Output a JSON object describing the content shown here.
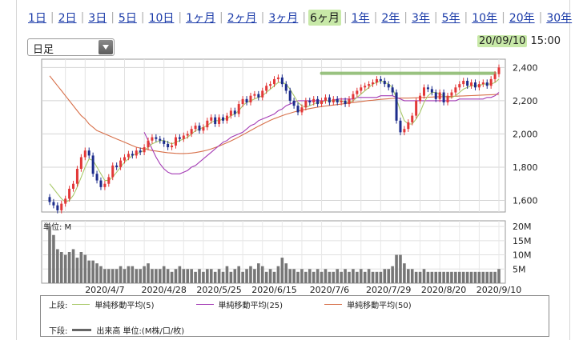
{
  "tabs": [
    "1日",
    "2日",
    "3日",
    "5日",
    "10日",
    "1ヶ月",
    "2ヶ月",
    "3ヶ月",
    "6ヶ月",
    "1年",
    "2年",
    "3年",
    "5年",
    "10年",
    "20年",
    "30年"
  ],
  "active_tab": "6ヶ月",
  "period_select": {
    "value": "日足"
  },
  "timestamp": {
    "date": "20/09/10",
    "time": "15:00"
  },
  "colors": {
    "up": "#e23838",
    "down": "#1d2d8c",
    "ma5": "#a9c96a",
    "ma25": "#a43bb5",
    "ma50": "#d7704a",
    "volume": "#777777",
    "highlight": "#88b86a"
  },
  "chart_data": {
    "type": "candlestick",
    "x_tick_labels": [
      "2020/4/7",
      "2020/4/28",
      "2020/5/25",
      "2020/6/15",
      "2020/7/6",
      "2020/7/29",
      "2020/8/20",
      "2020/9/10"
    ],
    "price_axis": {
      "ticks": [
        1600,
        1800,
        2000,
        2200,
        2400
      ],
      "labels": [
        "1,600",
        "1,800",
        "2,000",
        "2,200",
        "2,400"
      ],
      "range": [
        1530,
        2450
      ]
    },
    "volume_axis": {
      "label": "単位: M",
      "ticks": [
        5,
        10,
        15,
        20
      ],
      "labels": [
        "5M",
        "10M",
        "15M",
        "20M"
      ],
      "range": [
        0,
        22
      ]
    },
    "close": [
      1590,
      1570,
      1540,
      1580,
      1610,
      1670,
      1700,
      1790,
      1860,
      1900,
      1870,
      1760,
      1720,
      1680,
      1700,
      1740,
      1810,
      1800,
      1840,
      1860,
      1880,
      1870,
      1900,
      1890,
      1920,
      1960,
      1980,
      1970,
      1960,
      1940,
      1920,
      1930,
      1980,
      1970,
      1990,
      2000,
      2030,
      2050,
      2020,
      2040,
      2080,
      2100,
      2060,
      2100,
      2080,
      2110,
      2140,
      2120,
      2180,
      2210,
      2190,
      2230,
      2240,
      2220,
      2260,
      2290,
      2300,
      2330,
      2340,
      2300,
      2260,
      2200,
      2170,
      2130,
      2160,
      2200,
      2190,
      2210,
      2180,
      2200,
      2220,
      2190,
      2210,
      2190,
      2200,
      2180,
      2210,
      2240,
      2260,
      2280,
      2290,
      2300,
      2310,
      2330,
      2320,
      2300,
      2280,
      2250,
      2080,
      2010,
      2030,
      2070,
      2110,
      2200,
      2230,
      2280,
      2270,
      2250,
      2210,
      2250,
      2190,
      2230,
      2250,
      2280,
      2300,
      2320,
      2290,
      2310,
      2280,
      2300,
      2310,
      2290,
      2330,
      2360,
      2400
    ],
    "ma5": [
      1700,
      1670,
      1640,
      1610,
      1590,
      1600,
      1630,
      1680,
      1740,
      1800,
      1850,
      1840,
      1800,
      1760,
      1720,
      1720,
      1740,
      1770,
      1800,
      1830,
      1850,
      1870,
      1880,
      1890,
      1900,
      1920,
      1940,
      1950,
      1960,
      1960,
      1950,
      1940,
      1950,
      1960,
      1970,
      1980,
      2000,
      2020,
      2030,
      2040,
      2050,
      2070,
      2080,
      2080,
      2090,
      2090,
      2110,
      2120,
      2140,
      2170,
      2190,
      2200,
      2210,
      2220,
      2230,
      2250,
      2270,
      2290,
      2310,
      2310,
      2300,
      2270,
      2230,
      2190,
      2170,
      2160,
      2170,
      2180,
      2190,
      2190,
      2200,
      2200,
      2200,
      2200,
      2200,
      2190,
      2190,
      2200,
      2220,
      2240,
      2260,
      2280,
      2300,
      2310,
      2320,
      2310,
      2300,
      2280,
      2210,
      2140,
      2080,
      2060,
      2060,
      2090,
      2130,
      2190,
      2230,
      2250,
      2250,
      2240,
      2230,
      2220,
      2220,
      2230,
      2250,
      2270,
      2280,
      2290,
      2290,
      2290,
      2300,
      2300,
      2300,
      2310,
      2330
    ],
    "ma25": [
      null,
      null,
      null,
      null,
      null,
      null,
      null,
      null,
      null,
      null,
      null,
      null,
      null,
      null,
      null,
      null,
      null,
      null,
      null,
      null,
      null,
      null,
      null,
      null,
      2010,
      1960,
      1910,
      1860,
      1820,
      1790,
      1770,
      1760,
      1760,
      1760,
      1770,
      1780,
      1800,
      1810,
      1830,
      1850,
      1870,
      1890,
      1910,
      1930,
      1950,
      1960,
      1980,
      1990,
      2000,
      2010,
      2030,
      2050,
      2060,
      2080,
      2090,
      2100,
      2110,
      2120,
      2140,
      2150,
      2170,
      2180,
      2190,
      2200,
      2200,
      2200,
      2200,
      2200,
      2200,
      2200,
      2200,
      2200,
      2200,
      2210,
      2210,
      2210,
      2210,
      2210,
      2220,
      2220,
      2220,
      2220,
      2220,
      2220,
      2230,
      2230,
      2230,
      2230,
      2220,
      2210,
      2200,
      2200,
      2200,
      2200,
      2200,
      2200,
      2200,
      2200,
      2200,
      2200,
      2200,
      2200,
      2200,
      2200,
      2210,
      2210,
      2210,
      2210,
      2210,
      2210,
      2210,
      2220,
      2220,
      2230,
      2250
    ],
    "ma50": [
      2350,
      2320,
      2290,
      2260,
      2230,
      2200,
      2170,
      2140,
      2110,
      2090,
      2060,
      2040,
      2020,
      2010,
      2000,
      1990,
      1980,
      1970,
      1960,
      1950,
      1940,
      1930,
      1920,
      1915,
      1910,
      1905,
      1900,
      1897,
      1893,
      1890,
      1887,
      1885,
      1883,
      1882,
      1882,
      1883,
      1885,
      1888,
      1892,
      1897,
      1903,
      1910,
      1918,
      1927,
      1937,
      1947,
      1958,
      1970,
      1982,
      1995,
      2008,
      2021,
      2034,
      2047,
      2059,
      2071,
      2082,
      2092,
      2101,
      2110,
      2118,
      2125,
      2132,
      2138,
      2143,
      2148,
      2153,
      2157,
      2161,
      2165,
      2168,
      2171,
      2174,
      2177,
      2180,
      2183,
      2186,
      2189,
      2192,
      2195,
      2198,
      2201,
      2203,
      2206,
      2208,
      2210,
      2212,
      2214,
      2215,
      2216,
      2216,
      2216,
      2217,
      2218,
      2219,
      2220,
      2221,
      2222,
      2223,
      2224,
      2224,
      2225,
      2226,
      2227,
      2228,
      2229,
      2230,
      2231,
      2232,
      2233,
      2234,
      2235,
      2236,
      2237,
      2238
    ],
    "volume": [
      20,
      17,
      12,
      11,
      10,
      11,
      12,
      9,
      11,
      10,
      8,
      8,
      7,
      6,
      5,
      5,
      5,
      5,
      6,
      5,
      6,
      6,
      5,
      5,
      6,
      7,
      5,
      5,
      5,
      6,
      5,
      4,
      5,
      6,
      5,
      5,
      5,
      4,
      5,
      4,
      5,
      5,
      4,
      5,
      4,
      6,
      4,
      5,
      6,
      4,
      5,
      6,
      5,
      7,
      6,
      4,
      5,
      4,
      6,
      9,
      7,
      5,
      5,
      4,
      5,
      4,
      5,
      4,
      5,
      4,
      5,
      4,
      4,
      5,
      4,
      5,
      4,
      5,
      4,
      5,
      4,
      5,
      4,
      4,
      4,
      5,
      5,
      6,
      10,
      10,
      7,
      5,
      5,
      4,
      4,
      5,
      4,
      4,
      4,
      4,
      4,
      4,
      4,
      4,
      4,
      4,
      4,
      4,
      4,
      4,
      4,
      4,
      4,
      4,
      5
    ],
    "legend": {
      "upper_label": "上段:",
      "lower_label": "下段:",
      "series": [
        {
          "key": "ma5",
          "name": "単純移動平均(5)"
        },
        {
          "key": "ma25",
          "name": "単純移動平均(25)"
        },
        {
          "key": "ma50",
          "name": "単純移動平均(50)"
        }
      ],
      "volume_name": "出来高 単位:(M株/口/枚)"
    }
  }
}
